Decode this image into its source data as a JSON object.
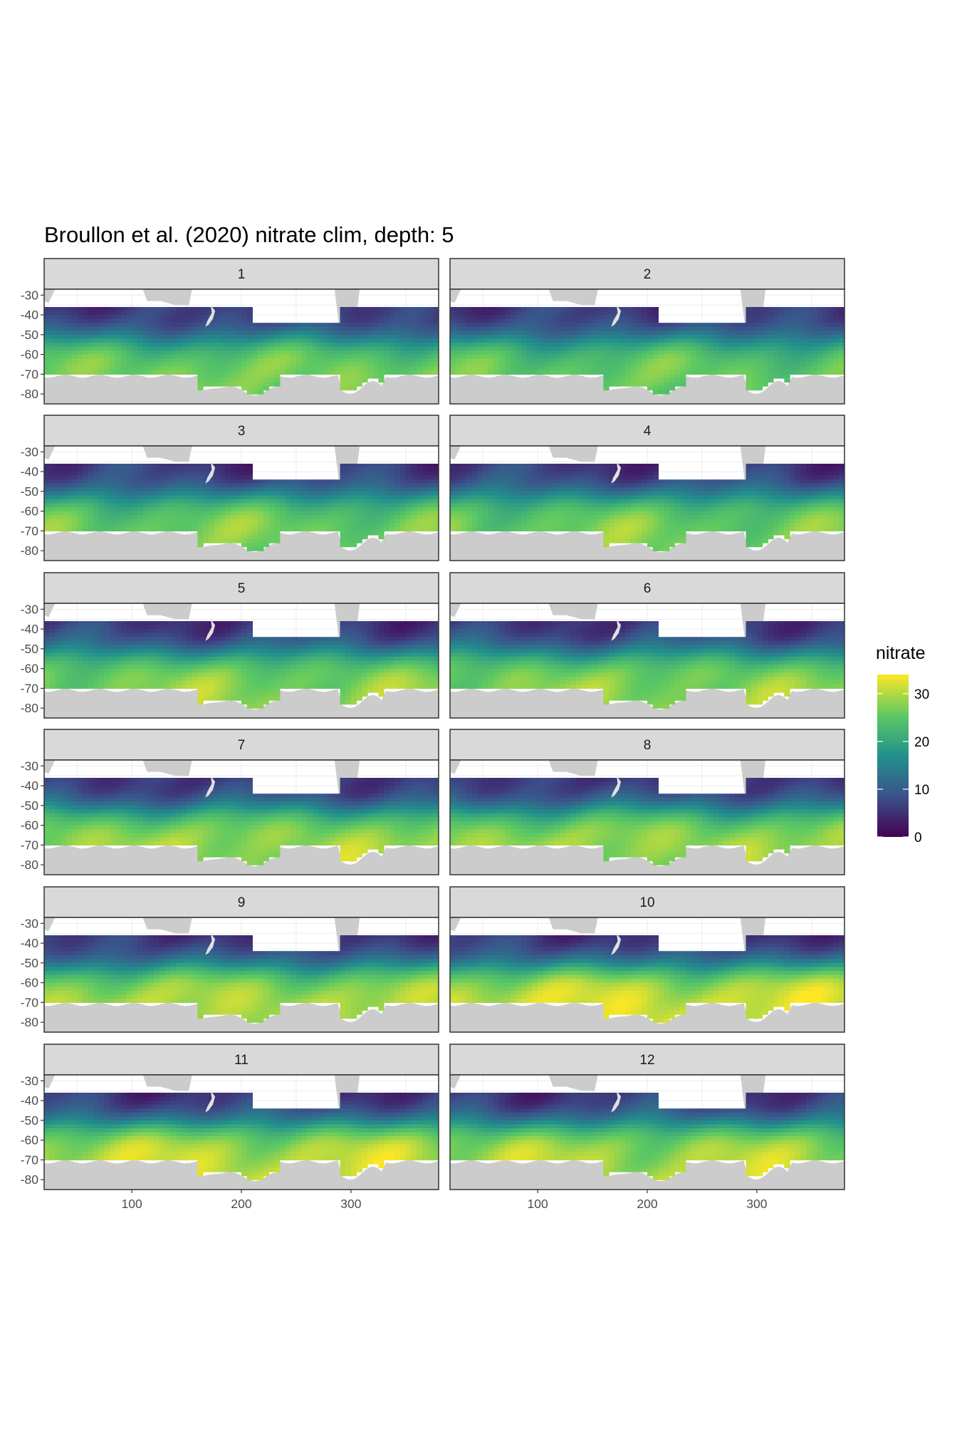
{
  "chart_data": {
    "type": "heatmap",
    "title": "Broullon et al. (2020) nitrate clim, depth: 5",
    "facet_labels": [
      "1",
      "2",
      "3",
      "4",
      "5",
      "6",
      "7",
      "8",
      "9",
      "10",
      "11",
      "12"
    ],
    "x_ticks": [
      100,
      200,
      300
    ],
    "y_ticks": [
      -30,
      -40,
      -50,
      -60,
      -70,
      -80
    ],
    "x_tick_labels": [
      "100",
      "200",
      "300"
    ],
    "y_tick_labels": [
      "-30",
      "-40",
      "-50",
      "-60",
      "-70",
      "-80"
    ],
    "xlim": [
      20,
      380
    ],
    "ylim": [
      -85,
      -27
    ],
    "legend": {
      "title": "nitrate",
      "breaks": [
        0,
        10,
        20,
        30
      ],
      "labels": [
        "0",
        "10",
        "20",
        "30"
      ],
      "range": [
        0,
        34
      ],
      "position": "right"
    },
    "colormap": [
      "#440154",
      "#3b528b",
      "#21918c",
      "#5ec962",
      "#fde725"
    ],
    "land_color": "#cccccc",
    "grid": true,
    "data_extent": {
      "lon": [
        20,
        380
      ],
      "lat_north_main": -36,
      "lat_north_pacific_gap": -45,
      "pacific_gap_lon": [
        210,
        290
      ],
      "lat_south_coast": -70
    },
    "monthly_southern_max_nitrate": [
      27,
      26,
      27,
      27,
      28,
      28,
      29,
      29,
      30,
      32,
      31,
      30
    ]
  }
}
